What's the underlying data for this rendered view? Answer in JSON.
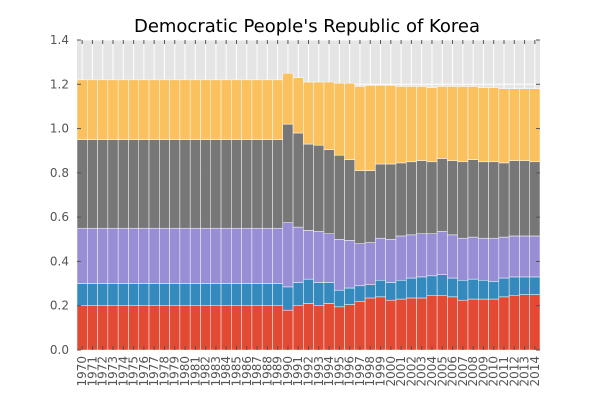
{
  "chart_data": {
    "type": "bar",
    "stacked": true,
    "title": "Democratic People's Republic of Korea",
    "xlabel": "",
    "ylabel": "",
    "ylim": [
      0,
      1.4
    ],
    "yticks": [
      "0.0",
      "0.2",
      "0.4",
      "0.6",
      "0.8",
      "1.0",
      "1.2",
      "1.4"
    ],
    "grid": true,
    "legend": "none",
    "colors": [
      "#E24A33",
      "#348ABD",
      "#988ED5",
      "#777777",
      "#FBC15E"
    ],
    "background": "#E5E5E5",
    "categories": [
      "1970",
      "1971",
      "1972",
      "1973",
      "1974",
      "1975",
      "1976",
      "1977",
      "1978",
      "1979",
      "1980",
      "1981",
      "1982",
      "1983",
      "1984",
      "1985",
      "1986",
      "1987",
      "1988",
      "1989",
      "1990",
      "1991",
      "1992",
      "1993",
      "1994",
      "1995",
      "1996",
      "1997",
      "1998",
      "1999",
      "2000",
      "2001",
      "2002",
      "2003",
      "2004",
      "2005",
      "2006",
      "2007",
      "2008",
      "2009",
      "2010",
      "2011",
      "2012",
      "2013",
      "2014"
    ],
    "series": [
      {
        "values": [
          0.2,
          0.2,
          0.2,
          0.2,
          0.2,
          0.2,
          0.2,
          0.2,
          0.2,
          0.2,
          0.2,
          0.2,
          0.2,
          0.2,
          0.2,
          0.2,
          0.2,
          0.2,
          0.2,
          0.2,
          0.18,
          0.2,
          0.21,
          0.2,
          0.21,
          0.195,
          0.205,
          0.22,
          0.235,
          0.24,
          0.225,
          0.23,
          0.235,
          0.235,
          0.245,
          0.245,
          0.24,
          0.225,
          0.23,
          0.23,
          0.23,
          0.24,
          0.245,
          0.25,
          0.25
        ]
      },
      {
        "values": [
          0.1,
          0.1,
          0.1,
          0.1,
          0.1,
          0.1,
          0.1,
          0.1,
          0.1,
          0.1,
          0.1,
          0.1,
          0.1,
          0.1,
          0.1,
          0.1,
          0.1,
          0.1,
          0.1,
          0.1,
          0.105,
          0.105,
          0.11,
          0.105,
          0.095,
          0.075,
          0.075,
          0.07,
          0.06,
          0.075,
          0.08,
          0.085,
          0.09,
          0.095,
          0.09,
          0.095,
          0.085,
          0.09,
          0.09,
          0.085,
          0.08,
          0.085,
          0.085,
          0.08,
          0.08
        ]
      },
      {
        "values": [
          0.25,
          0.25,
          0.25,
          0.25,
          0.25,
          0.25,
          0.25,
          0.25,
          0.25,
          0.25,
          0.25,
          0.25,
          0.25,
          0.25,
          0.25,
          0.25,
          0.25,
          0.25,
          0.25,
          0.25,
          0.29,
          0.25,
          0.22,
          0.23,
          0.22,
          0.23,
          0.215,
          0.19,
          0.19,
          0.19,
          0.195,
          0.2,
          0.195,
          0.195,
          0.19,
          0.195,
          0.195,
          0.19,
          0.19,
          0.19,
          0.195,
          0.185,
          0.185,
          0.185,
          0.185
        ]
      },
      {
        "values": [
          0.4,
          0.4,
          0.4,
          0.4,
          0.4,
          0.4,
          0.4,
          0.4,
          0.4,
          0.4,
          0.4,
          0.4,
          0.4,
          0.4,
          0.4,
          0.4,
          0.4,
          0.4,
          0.4,
          0.4,
          0.445,
          0.425,
          0.39,
          0.39,
          0.38,
          0.38,
          0.365,
          0.33,
          0.325,
          0.335,
          0.34,
          0.33,
          0.33,
          0.33,
          0.325,
          0.33,
          0.335,
          0.345,
          0.35,
          0.345,
          0.345,
          0.335,
          0.34,
          0.34,
          0.335
        ]
      },
      {
        "values": [
          0.27,
          0.27,
          0.27,
          0.27,
          0.27,
          0.27,
          0.27,
          0.27,
          0.27,
          0.27,
          0.27,
          0.27,
          0.27,
          0.27,
          0.27,
          0.27,
          0.27,
          0.27,
          0.27,
          0.27,
          0.23,
          0.25,
          0.28,
          0.285,
          0.305,
          0.325,
          0.345,
          0.38,
          0.385,
          0.355,
          0.355,
          0.345,
          0.34,
          0.335,
          0.335,
          0.325,
          0.335,
          0.34,
          0.33,
          0.335,
          0.335,
          0.335,
          0.325,
          0.325,
          0.33
        ]
      }
    ]
  }
}
